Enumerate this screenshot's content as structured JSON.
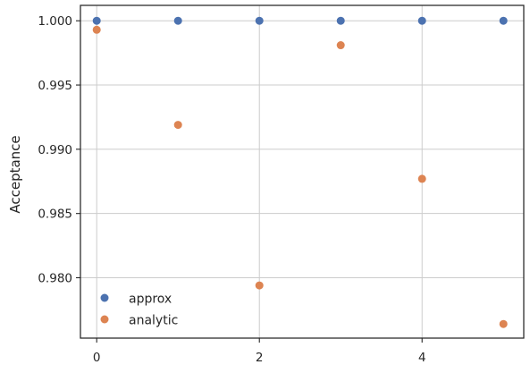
{
  "chart_data": {
    "type": "scatter",
    "title": "",
    "xlabel": "",
    "ylabel": "Acceptance",
    "xlim": [
      -0.2,
      5.25
    ],
    "ylim": [
      0.9753,
      1.0012
    ],
    "xticks": [
      0,
      2,
      4
    ],
    "xtick_labels": [
      "0",
      "2",
      "4"
    ],
    "yticks": [
      0.98,
      0.985,
      0.99,
      0.995,
      1.0
    ],
    "ytick_labels": [
      "0.980",
      "0.985",
      "0.990",
      "0.995",
      "1.000"
    ],
    "grid": true,
    "legend": "lower-left",
    "series": [
      {
        "name": "approx",
        "color": "#4c72b0",
        "x": [
          0,
          1,
          2,
          3,
          4,
          5
        ],
        "y": [
          1.0,
          1.0,
          1.0,
          1.0,
          1.0,
          1.0
        ]
      },
      {
        "name": "analytic",
        "color": "#dd8452",
        "x": [
          0,
          1,
          2,
          3,
          4,
          5
        ],
        "y": [
          0.9993,
          0.9919,
          0.9794,
          0.9981,
          0.9877,
          0.9764
        ]
      }
    ]
  }
}
